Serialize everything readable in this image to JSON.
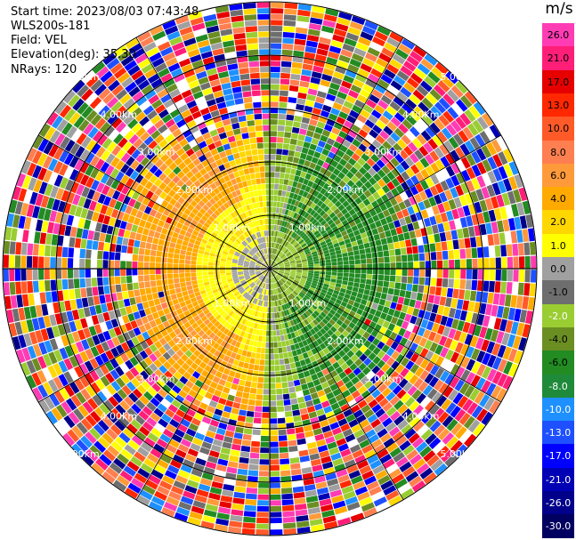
{
  "header": {
    "start_time": "Start time: 2023/08/03 07:43:48",
    "instrument": "WLS200s-181",
    "field": "Field: VEL",
    "elevation": "Elevation(deg): 35.30",
    "nrays": "NRays: 120"
  },
  "range_rings": [
    "1.00km",
    "2.00km",
    "3.00km",
    "4.00km",
    "5.00km"
  ],
  "colorbar": {
    "unit": "m/s",
    "ticks": [
      "26.0",
      "21.0",
      "17.0",
      "13.0",
      "10.0",
      "8.0",
      "6.0",
      "4.0",
      "2.0",
      "1.0",
      "0.0",
      "-1.0",
      "-2.0",
      "-4.0",
      "-6.0",
      "-8.0",
      "-10.0",
      "-13.0",
      "-17.0",
      "-21.0",
      "-26.0",
      "-30.0"
    ],
    "colors": [
      "#ff3cb4",
      "#ff1e78",
      "#e60000",
      "#ff2800",
      "#ff5a28",
      "#ff7f50",
      "#ff9a3a",
      "#ffaa00",
      "#ffd700",
      "#ffff00",
      "#a0a0a0",
      "#6e6e6e",
      "#9acd32",
      "#6b8e23",
      "#228b22",
      "#1f8a3a",
      "#1e90ff",
      "#1e50ff",
      "#0000ff",
      "#0000b4",
      "#00008b",
      "#000060"
    ]
  }
}
